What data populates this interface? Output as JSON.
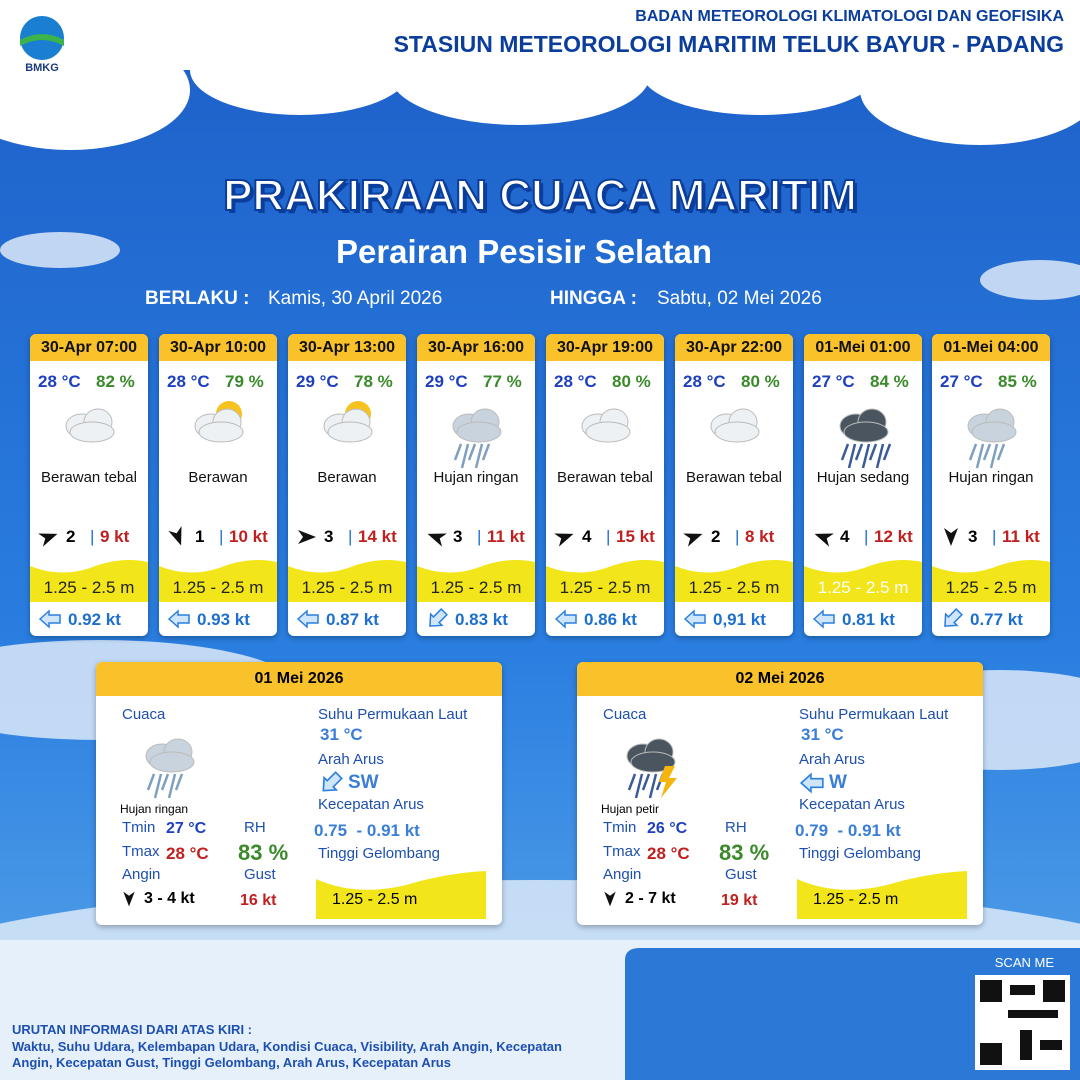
{
  "header": {
    "logo_text": "BMKG",
    "org": "BADAN METEOROLOGI KLIMATOLOGI DAN GEOFISIKA",
    "station": "STASIUN METEOROLOGI MARITIM TELUK BAYUR - PADANG"
  },
  "title": "PRAKIRAAN CUACA MARITIM",
  "subtitle": "Perairan Pesisir Selatan",
  "validity": {
    "from_label": "BERLAKU :",
    "from": "Kamis, 30 April 2026",
    "to_label": "HINGGA :",
    "to": "Sabtu, 02 Mei 2026"
  },
  "cards": [
    {
      "time": "30-Apr 07:00",
      "temp": "28 °C",
      "rh": "82 %",
      "weather": "Berawan tebal",
      "wind": "2",
      "gust": "9 kt",
      "wave": "1.25 - 2.5 m",
      "current": "0.92 kt"
    },
    {
      "time": "30-Apr 10:00",
      "temp": "28 °C",
      "rh": "79 %",
      "weather": "Berawan",
      "wind": "1",
      "gust": "10 kt",
      "wave": "1.25 - 2.5 m",
      "current": "0.93 kt"
    },
    {
      "time": "30-Apr 13:00",
      "temp": "29 °C",
      "rh": "78 %",
      "weather": "Berawan",
      "wind": "3",
      "gust": "14 kt",
      "wave": "1.25 - 2.5 m",
      "current": "0.87 kt"
    },
    {
      "time": "30-Apr 16:00",
      "temp": "29 °C",
      "rh": "77 %",
      "weather": "Hujan ringan",
      "wind": "3",
      "gust": "11 kt",
      "wave": "1.25 - 2.5 m",
      "current": "0.83 kt"
    },
    {
      "time": "30-Apr 19:00",
      "temp": "28 °C",
      "rh": "80 %",
      "weather": "Berawan tebal",
      "wind": "4",
      "gust": "15 kt",
      "wave": "1.25 - 2.5 m",
      "current": "0.86 kt"
    },
    {
      "time": "30-Apr 22:00",
      "temp": "28 °C",
      "rh": "80 %",
      "weather": "Berawan tebal",
      "wind": "2",
      "gust": "8 kt",
      "wave": "1.25 - 2.5 m",
      "current": "0,91 kt"
    },
    {
      "time": "01-Mei 01:00",
      "temp": "27 °C",
      "rh": "84 %",
      "weather": "Hujan sedang",
      "wind": "4",
      "gust": "12 kt",
      "wave": "1.25 - 2.5 m",
      "current": "0.81 kt"
    },
    {
      "time": "01-Mei 04:00",
      "temp": "27 °C",
      "rh": "85 %",
      "weather": "Hujan ringan",
      "wind": "3",
      "gust": "11 kt",
      "wave": "1.25 - 2.5 m",
      "current": "0.77 kt"
    }
  ],
  "daily_labels": {
    "weather": "Cuaca",
    "tmin": "Tmin",
    "tmax": "Tmax",
    "rh": "RH",
    "wind": "Angin",
    "gust": "Gust",
    "sst": "Suhu Permukaan Laut",
    "current_dir": "Arah Arus",
    "current_speed": "Kecepatan Arus",
    "wave": "Tinggi Gelombang"
  },
  "daily": [
    {
      "date": "01 Mei 2026",
      "weather": "Hujan ringan",
      "tmin": "27 °C",
      "tmax": "28 °C",
      "rh": "83 %",
      "wind": "3 - 4 kt",
      "gust": "16 kt",
      "sst": "31 °C",
      "current_dir": "SW",
      "current_speed": "0.75  - 0.91 kt",
      "wave": "1.25 - 2.5 m"
    },
    {
      "date": "02 Mei 2026",
      "weather": "Hujan petir",
      "tmin": "26 °C",
      "tmax": "28 °C",
      "rh": "83 %",
      "wind": "2 - 7 kt",
      "gust": "19 kt",
      "sst": "31 °C",
      "current_dir": "W",
      "current_speed": "0.79  - 0.91 kt",
      "wave": "1.25 - 2.5 m"
    }
  ],
  "footer": {
    "scan": "SCAN ME",
    "info_title": "URUTAN INFORMASI DARI ATAS KIRI :",
    "info_text": "Waktu, Suhu Udara, Kelembapan Udara, Kondisi Cuaca, Visibility, Arah Angin, Kecepatan Angin, Kecepatan Gust, Tinggi Gelombang, Arah Arus, Kecepatan Arus"
  }
}
